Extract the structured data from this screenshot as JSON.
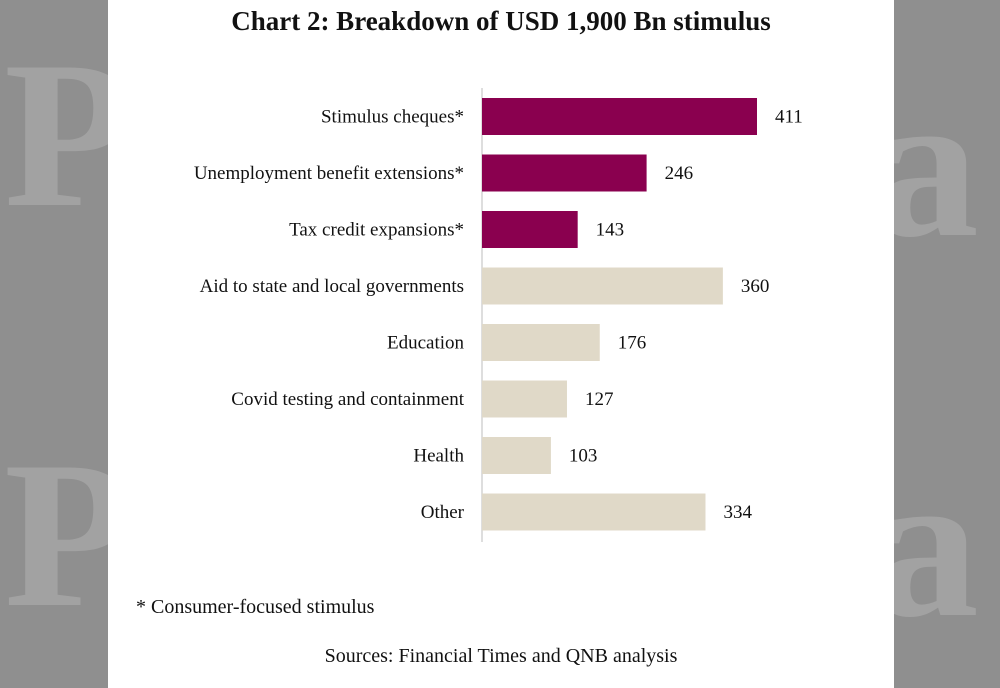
{
  "title": "Chart 2: Breakdown of USD 1,900 Bn stimulus",
  "footnote": "* Consumer-focused stimulus",
  "source": "Sources: Financial Times and QNB analysis",
  "colors": {
    "consumer": "#8a004f",
    "other": "#e0d9c8",
    "background": "#8f8f8f",
    "panel": "#ffffff"
  },
  "chart_data": {
    "type": "bar",
    "orientation": "horizontal",
    "title": "Chart 2: Breakdown of USD 1,900 Bn stimulus",
    "xlabel": "",
    "ylabel": "",
    "categories": [
      "Stimulus cheques*",
      "Unemployment benefit extensions*",
      "Tax credit expansions*",
      "Aid to state and local governments",
      "Education",
      "Covid testing and containment",
      "Health",
      "Other"
    ],
    "values": [
      411,
      246,
      143,
      360,
      176,
      127,
      103,
      334
    ],
    "consumer_focused": [
      true,
      true,
      true,
      false,
      false,
      false,
      false,
      false
    ],
    "xlim": [
      0,
      411
    ],
    "grid": false,
    "legend": "none"
  }
}
